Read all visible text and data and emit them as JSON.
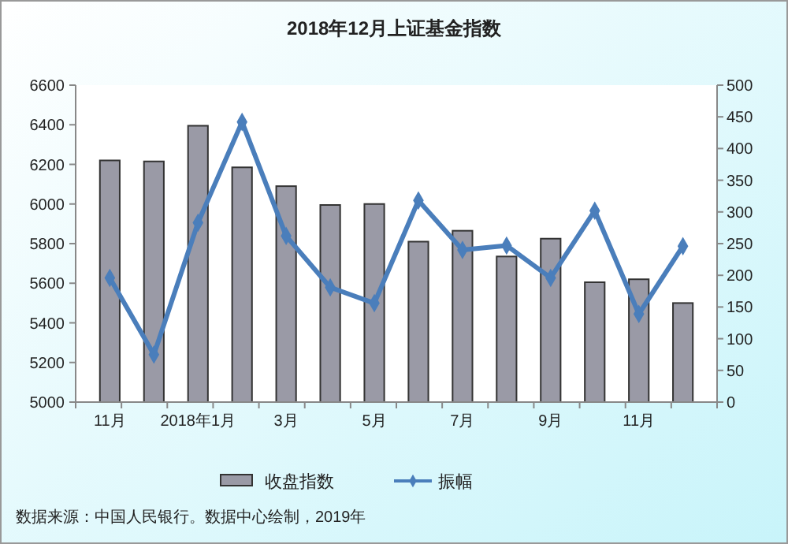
{
  "chart_data": {
    "type": "bar",
    "title": "2018年12月上证基金指数",
    "categories": [
      "11月",
      null,
      "2018年1月",
      null,
      "3月",
      null,
      "5月",
      null,
      "7月",
      null,
      "9月",
      null,
      "11月",
      null
    ],
    "series": [
      {
        "name": "收盘指数",
        "color": "#9a9aa6",
        "values": [
          6220,
          6215,
          6395,
          6185,
          6090,
          5995,
          6000,
          5810,
          5865,
          5735,
          5825,
          5605,
          5620,
          5500
        ]
      },
      {
        "name": "振幅",
        "type": "line",
        "axis": "y2",
        "color": "#4a7ebb",
        "marker": "diamond",
        "values": [
          196,
          75,
          283,
          442,
          262,
          181,
          156,
          318,
          240,
          247,
          196,
          302,
          139,
          246
        ]
      }
    ],
    "ylim": [
      5000,
      6600
    ],
    "yticks": [
      5000,
      5200,
      5400,
      5600,
      5800,
      6000,
      6200,
      6400,
      6600
    ],
    "y2lim": [
      0,
      500
    ],
    "y2ticks": [
      0,
      50,
      100,
      150,
      200,
      250,
      300,
      350,
      400,
      450,
      500
    ],
    "legend": "bottom",
    "annotations": [
      "数据来源：中国人民银行。数据中心绘制，2019年"
    ]
  }
}
